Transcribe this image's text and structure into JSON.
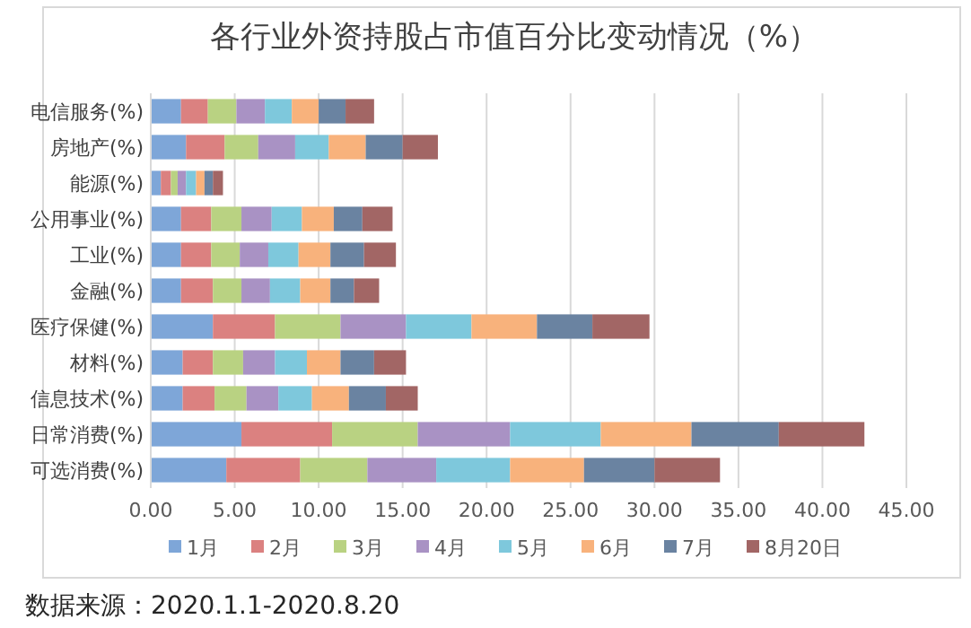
{
  "chart_data": {
    "type": "bar",
    "orientation": "horizontal",
    "stacked": true,
    "title": "各行业外资持股占市值百分比变动情况（%）",
    "categories": [
      "电信服务(%)",
      "房地产(%)",
      "能源(%)",
      "公用事业(%)",
      "工业(%)",
      "金融(%)",
      "医疗保健(%)",
      "材料(%)",
      "信息技术(%)",
      "日常消费(%)",
      "可选消费(%)"
    ],
    "series": [
      {
        "name": "1月",
        "color": "#7ea6d8",
        "values": [
          1.8,
          2.1,
          0.6,
          1.8,
          1.8,
          1.8,
          3.7,
          1.9,
          1.9,
          5.4,
          4.5
        ]
      },
      {
        "name": "2月",
        "color": "#db8180",
        "values": [
          1.6,
          2.3,
          0.6,
          1.8,
          1.8,
          1.9,
          3.7,
          1.8,
          1.9,
          5.4,
          4.4
        ]
      },
      {
        "name": "3月",
        "color": "#b9d282",
        "values": [
          1.7,
          2.0,
          0.4,
          1.8,
          1.7,
          1.7,
          3.9,
          1.8,
          1.9,
          5.1,
          4.0
        ]
      },
      {
        "name": "4月",
        "color": "#a992c4",
        "values": [
          1.7,
          2.2,
          0.5,
          1.8,
          1.7,
          1.7,
          3.9,
          1.9,
          1.9,
          5.5,
          4.1
        ]
      },
      {
        "name": "5月",
        "color": "#7ec8dc",
        "values": [
          1.6,
          2.0,
          0.6,
          1.8,
          1.8,
          1.8,
          3.9,
          1.9,
          2.0,
          5.4,
          4.4
        ]
      },
      {
        "name": "6月",
        "color": "#f8b27c",
        "values": [
          1.6,
          2.2,
          0.5,
          1.9,
          1.9,
          1.8,
          3.9,
          2.0,
          2.2,
          5.4,
          4.4
        ]
      },
      {
        "name": "7月",
        "color": "#6a83a1",
        "values": [
          1.6,
          2.2,
          0.5,
          1.7,
          2.0,
          1.4,
          3.3,
          2.0,
          2.2,
          5.2,
          4.2
        ]
      },
      {
        "name": "8月20日",
        "color": "#a26665",
        "values": [
          1.7,
          2.1,
          0.6,
          1.8,
          1.9,
          1.5,
          3.4,
          1.9,
          1.9,
          5.1,
          3.9
        ]
      }
    ],
    "xlim": [
      0,
      45
    ],
    "xticks": [
      {
        "value": 0,
        "label": "0.00"
      },
      {
        "value": 5,
        "label": "5.00"
      },
      {
        "value": 10,
        "label": "10.00"
      },
      {
        "value": 15,
        "label": "15.00"
      },
      {
        "value": 20,
        "label": "20.00"
      },
      {
        "value": 25,
        "label": "25.00"
      },
      {
        "value": 30,
        "label": "30.00"
      },
      {
        "value": 35,
        "label": "35.00"
      },
      {
        "value": 40,
        "label": "40.00"
      },
      {
        "value": 45,
        "label": "45.00"
      }
    ],
    "grid": "x",
    "legend": "bottom",
    "annotations": [
      "数据来源：2020.1.1-2020.8.20"
    ]
  }
}
